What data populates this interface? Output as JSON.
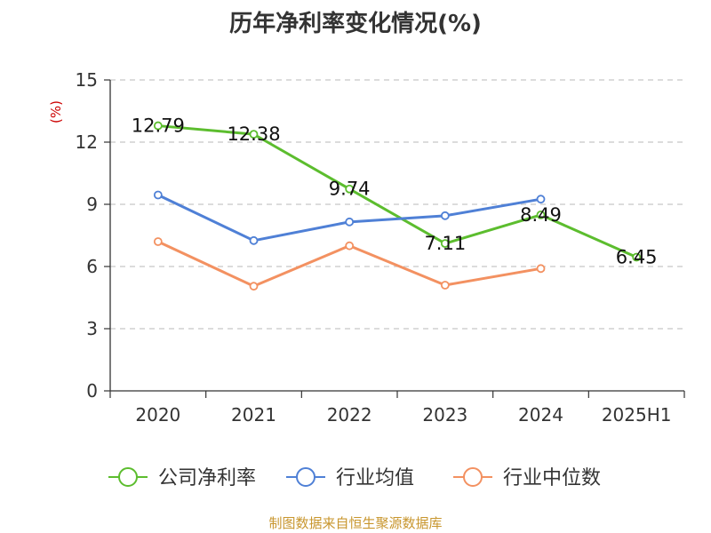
{
  "title": "历年净利率变化情况(%)",
  "source_note": "制图数据来自恒生聚源数据库",
  "chart_data": {
    "type": "line",
    "title": "历年净利率变化情况(%)",
    "ylabel": "(%)",
    "xlabel": "",
    "categories": [
      "2020",
      "2021",
      "2022",
      "2023",
      "2024",
      "2025H1"
    ],
    "ylim": [
      0,
      15
    ],
    "yticks": [
      0,
      3,
      6,
      9,
      12,
      15
    ],
    "grid": true,
    "legend_position": "bottom",
    "series": [
      {
        "name": "公司净利率",
        "color": "#5cbd2e",
        "values": [
          12.79,
          12.38,
          9.74,
          7.11,
          8.49,
          6.45
        ],
        "labels": [
          "12.79",
          "12.38",
          "9.74",
          "7.11",
          "8.49",
          "6.45"
        ]
      },
      {
        "name": "行业均值",
        "color": "#4f80d6",
        "values": [
          9.45,
          7.25,
          8.15,
          8.45,
          9.25,
          null
        ],
        "labels": []
      },
      {
        "name": "行业中位数",
        "color": "#f39161",
        "values": [
          7.2,
          5.05,
          7.0,
          5.1,
          5.9,
          null
        ],
        "labels": []
      }
    ]
  }
}
